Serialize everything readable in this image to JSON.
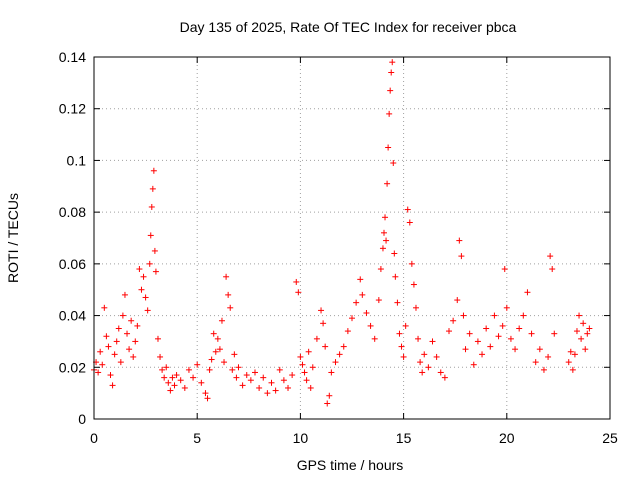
{
  "chart_data": {
    "type": "scatter",
    "title": "Day 135 of 2025, Rate Of TEC Index for receiver pbca",
    "xlabel": "GPS time / hours",
    "ylabel": "ROTI / TECUs",
    "xlim": [
      0,
      25
    ],
    "ylim": [
      0,
      0.14
    ],
    "xticks": [
      0,
      5,
      10,
      15,
      20,
      25
    ],
    "yticks": [
      0,
      0.02,
      0.04,
      0.06,
      0.08,
      0.1,
      0.12,
      0.14
    ],
    "xtick_labels": [
      "0",
      "5",
      "10",
      "15",
      "20",
      "25"
    ],
    "ytick_labels": [
      "0",
      "0.02",
      "0.04",
      "0.06",
      "0.08",
      "0.1",
      "0.12",
      "0.14"
    ],
    "grid": true,
    "marker": "plus",
    "color": "#ff0000",
    "series": [
      {
        "points": [
          [
            0.0,
            0.019
          ],
          [
            0.1,
            0.022
          ],
          [
            0.2,
            0.018
          ],
          [
            0.3,
            0.026
          ],
          [
            0.4,
            0.021
          ],
          [
            0.5,
            0.043
          ],
          [
            0.6,
            0.032
          ],
          [
            0.7,
            0.028
          ],
          [
            0.8,
            0.017
          ],
          [
            0.9,
            0.013
          ],
          [
            1.0,
            0.025
          ],
          [
            1.1,
            0.03
          ],
          [
            1.2,
            0.035
          ],
          [
            1.3,
            0.022
          ],
          [
            1.4,
            0.04
          ],
          [
            1.5,
            0.048
          ],
          [
            1.6,
            0.033
          ],
          [
            1.7,
            0.027
          ],
          [
            1.8,
            0.038
          ],
          [
            1.9,
            0.024
          ],
          [
            2.0,
            0.03
          ],
          [
            2.1,
            0.036
          ],
          [
            2.2,
            0.058
          ],
          [
            2.3,
            0.05
          ],
          [
            2.4,
            0.055
          ],
          [
            2.5,
            0.047
          ],
          [
            2.6,
            0.042
          ],
          [
            2.7,
            0.06
          ],
          [
            2.75,
            0.071
          ],
          [
            2.8,
            0.082
          ],
          [
            2.85,
            0.089
          ],
          [
            2.9,
            0.096
          ],
          [
            2.95,
            0.065
          ],
          [
            3.0,
            0.057
          ],
          [
            3.1,
            0.031
          ],
          [
            3.2,
            0.024
          ],
          [
            3.3,
            0.019
          ],
          [
            3.4,
            0.016
          ],
          [
            3.5,
            0.02
          ],
          [
            3.6,
            0.014
          ],
          [
            3.7,
            0.011
          ],
          [
            3.8,
            0.016
          ],
          [
            3.9,
            0.013
          ],
          [
            4.0,
            0.017
          ],
          [
            4.2,
            0.015
          ],
          [
            4.4,
            0.012
          ],
          [
            4.6,
            0.019
          ],
          [
            4.8,
            0.016
          ],
          [
            5.0,
            0.021
          ],
          [
            5.2,
            0.014
          ],
          [
            5.4,
            0.01
          ],
          [
            5.5,
            0.008
          ],
          [
            5.6,
            0.019
          ],
          [
            5.7,
            0.023
          ],
          [
            5.8,
            0.033
          ],
          [
            5.9,
            0.026
          ],
          [
            6.0,
            0.031
          ],
          [
            6.1,
            0.027
          ],
          [
            6.2,
            0.038
          ],
          [
            6.3,
            0.022
          ],
          [
            6.4,
            0.055
          ],
          [
            6.5,
            0.048
          ],
          [
            6.6,
            0.043
          ],
          [
            6.7,
            0.019
          ],
          [
            6.8,
            0.025
          ],
          [
            6.9,
            0.016
          ],
          [
            7.0,
            0.02
          ],
          [
            7.2,
            0.013
          ],
          [
            7.4,
            0.017
          ],
          [
            7.6,
            0.015
          ],
          [
            7.8,
            0.018
          ],
          [
            8.0,
            0.012
          ],
          [
            8.2,
            0.016
          ],
          [
            8.4,
            0.01
          ],
          [
            8.6,
            0.014
          ],
          [
            8.8,
            0.011
          ],
          [
            9.0,
            0.019
          ],
          [
            9.2,
            0.015
          ],
          [
            9.4,
            0.012
          ],
          [
            9.6,
            0.017
          ],
          [
            9.8,
            0.053
          ],
          [
            9.9,
            0.049
          ],
          [
            10.0,
            0.024
          ],
          [
            10.1,
            0.021
          ],
          [
            10.2,
            0.018
          ],
          [
            10.3,
            0.015
          ],
          [
            10.4,
            0.026
          ],
          [
            10.5,
            0.012
          ],
          [
            10.6,
            0.02
          ],
          [
            10.8,
            0.031
          ],
          [
            11.0,
            0.042
          ],
          [
            11.1,
            0.037
          ],
          [
            11.2,
            0.028
          ],
          [
            11.3,
            0.006
          ],
          [
            11.4,
            0.009
          ],
          [
            11.5,
            0.018
          ],
          [
            11.7,
            0.022
          ],
          [
            11.9,
            0.025
          ],
          [
            12.1,
            0.028
          ],
          [
            12.3,
            0.034
          ],
          [
            12.5,
            0.039
          ],
          [
            12.7,
            0.045
          ],
          [
            12.9,
            0.054
          ],
          [
            13.0,
            0.048
          ],
          [
            13.2,
            0.041
          ],
          [
            13.4,
            0.036
          ],
          [
            13.6,
            0.031
          ],
          [
            13.8,
            0.046
          ],
          [
            13.9,
            0.058
          ],
          [
            14.0,
            0.066
          ],
          [
            14.05,
            0.072
          ],
          [
            14.1,
            0.078
          ],
          [
            14.15,
            0.069
          ],
          [
            14.2,
            0.091
          ],
          [
            14.25,
            0.105
          ],
          [
            14.3,
            0.118
          ],
          [
            14.35,
            0.127
          ],
          [
            14.4,
            0.134
          ],
          [
            14.45,
            0.138
          ],
          [
            14.5,
            0.099
          ],
          [
            14.55,
            0.064
          ],
          [
            14.6,
            0.055
          ],
          [
            14.7,
            0.045
          ],
          [
            14.8,
            0.033
          ],
          [
            14.9,
            0.028
          ],
          [
            15.0,
            0.024
          ],
          [
            15.1,
            0.036
          ],
          [
            15.2,
            0.081
          ],
          [
            15.3,
            0.076
          ],
          [
            15.4,
            0.06
          ],
          [
            15.5,
            0.052
          ],
          [
            15.6,
            0.043
          ],
          [
            15.7,
            0.031
          ],
          [
            15.8,
            0.022
          ],
          [
            15.9,
            0.018
          ],
          [
            16.0,
            0.025
          ],
          [
            16.2,
            0.02
          ],
          [
            16.4,
            0.03
          ],
          [
            16.6,
            0.024
          ],
          [
            16.8,
            0.018
          ],
          [
            17.0,
            0.016
          ],
          [
            17.2,
            0.034
          ],
          [
            17.4,
            0.038
          ],
          [
            17.6,
            0.046
          ],
          [
            17.7,
            0.069
          ],
          [
            17.8,
            0.063
          ],
          [
            17.9,
            0.04
          ],
          [
            18.0,
            0.027
          ],
          [
            18.2,
            0.033
          ],
          [
            18.4,
            0.021
          ],
          [
            18.6,
            0.03
          ],
          [
            18.8,
            0.025
          ],
          [
            19.0,
            0.035
          ],
          [
            19.2,
            0.028
          ],
          [
            19.4,
            0.04
          ],
          [
            19.6,
            0.032
          ],
          [
            19.8,
            0.036
          ],
          [
            19.9,
            0.058
          ],
          [
            20.0,
            0.043
          ],
          [
            20.2,
            0.031
          ],
          [
            20.4,
            0.027
          ],
          [
            20.6,
            0.035
          ],
          [
            20.8,
            0.04
          ],
          [
            21.0,
            0.049
          ],
          [
            21.2,
            0.033
          ],
          [
            21.4,
            0.022
          ],
          [
            21.6,
            0.027
          ],
          [
            21.8,
            0.019
          ],
          [
            22.0,
            0.024
          ],
          [
            22.1,
            0.063
          ],
          [
            22.2,
            0.058
          ],
          [
            22.3,
            0.033
          ],
          [
            23.0,
            0.022
          ],
          [
            23.1,
            0.026
          ],
          [
            23.2,
            0.019
          ],
          [
            23.3,
            0.025
          ],
          [
            23.4,
            0.034
          ],
          [
            23.5,
            0.04
          ],
          [
            23.6,
            0.031
          ],
          [
            23.7,
            0.037
          ],
          [
            23.8,
            0.027
          ],
          [
            23.9,
            0.033
          ],
          [
            24.0,
            0.035
          ]
        ]
      }
    ]
  }
}
